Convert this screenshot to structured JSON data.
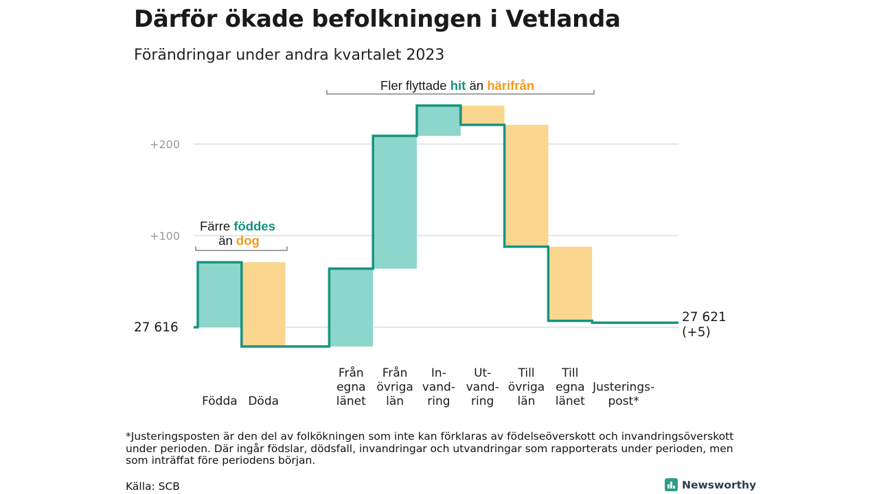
{
  "title": "Därför ökade befolkningen i Vetlanda",
  "subtitle": "Förändringar under andra kvartalet 2023",
  "colors": {
    "increase": "#8dd6cc",
    "decrease": "#fad68f",
    "line": "#16937f",
    "teal_text": "#16937f",
    "orange_text": "#f29b1d",
    "grid": "#dddddd",
    "axis_label": "#9a9a9a"
  },
  "chart_data": {
    "type": "waterfall",
    "start": {
      "label": "27  616",
      "value": 27616
    },
    "end": {
      "line1": "27 621",
      "line2": "(+5)",
      "value": 27621,
      "change": 5
    },
    "y_ticks": [
      {
        "label": "+100",
        "value": 100
      },
      {
        "label": "+200",
        "value": 200
      }
    ],
    "steps": [
      {
        "label": [
          "Födda"
        ],
        "delta": 71,
        "kind": "increase"
      },
      {
        "label": [
          "Döda"
        ],
        "delta": -92,
        "kind": "decrease"
      },
      {
        "label": [],
        "delta": 0,
        "kind": "gap"
      },
      {
        "label": [
          "Från",
          "egna",
          "länet"
        ],
        "delta": 85,
        "kind": "increase"
      },
      {
        "label": [
          "Från",
          "övriga",
          "län"
        ],
        "delta": 145,
        "kind": "increase"
      },
      {
        "label": [
          "In-",
          "vand-",
          "ring"
        ],
        "delta": 33,
        "kind": "increase"
      },
      {
        "label": [
          "Ut-",
          "vand-",
          "ring"
        ],
        "delta": -21,
        "kind": "decrease"
      },
      {
        "label": [
          "Till",
          "övriga",
          "län"
        ],
        "delta": -133,
        "kind": "decrease"
      },
      {
        "label": [
          "Till",
          "egna",
          "länet"
        ],
        "delta": -81,
        "kind": "decrease"
      },
      {
        "label": [
          "Justerings-",
          "post*"
        ],
        "delta": -2,
        "kind": "adjust"
      }
    ],
    "annotations": [
      {
        "parts": [
          {
            "text": "Färre ",
            "style": "plain"
          },
          {
            "text": "föddes",
            "style": "teal"
          }
        ],
        "parts2": [
          {
            "text": "än ",
            "style": "plain"
          },
          {
            "text": "dog",
            "style": "orange"
          }
        ]
      },
      {
        "parts": [
          {
            "text": "Fler flyttade ",
            "style": "plain"
          },
          {
            "text": "hit",
            "style": "teal"
          },
          {
            "text": " än ",
            "style": "plain"
          },
          {
            "text": "härifrån",
            "style": "orange"
          }
        ]
      }
    ]
  },
  "footnote": "*Justeringsposten är den del av folkökningen som inte kan förklaras av födelseöverskott och invandringsöverskott under perioden. Där ingår födslar, dödsfall, invandringar och utvandringar som rapporterats under perioden, men som inträffat före periodens början.",
  "source": "Källa: SCB",
  "brand": "Newsworthy"
}
